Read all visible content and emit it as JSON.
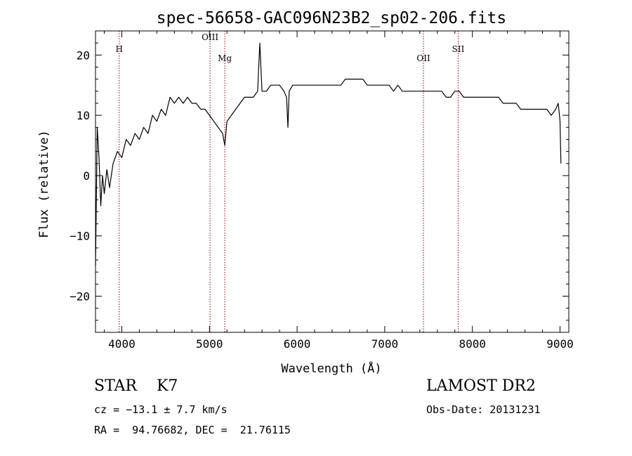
{
  "chart_data": {
    "type": "line",
    "title": "spec-56658-GAC096N23B2_sp02-206.fits",
    "xlabel": "Wavelength (Å)",
    "ylabel": "Flux (relative)",
    "xlim": [
      3700,
      9100
    ],
    "ylim": [
      -26,
      24
    ],
    "xticks": [
      4000,
      5000,
      6000,
      7000,
      8000,
      9000
    ],
    "yticks": [
      -20,
      -10,
      0,
      10,
      20
    ],
    "grid": false,
    "series": [
      {
        "color": "#000000",
        "x": [
          3700,
          3720,
          3740,
          3760,
          3780,
          3800,
          3830,
          3860,
          3900,
          3950,
          4000,
          4050,
          4100,
          4150,
          4200,
          4250,
          4300,
          4350,
          4400,
          4450,
          4500,
          4550,
          4600,
          4650,
          4700,
          4750,
          4800,
          4850,
          4900,
          4950,
          5000,
          5050,
          5100,
          5150,
          5175,
          5200,
          5250,
          5300,
          5350,
          5400,
          5450,
          5500,
          5550,
          5575,
          5600,
          5650,
          5700,
          5750,
          5800,
          5850,
          5880,
          5895,
          5910,
          5950,
          6000,
          6050,
          6100,
          6150,
          6200,
          6250,
          6300,
          6350,
          6400,
          6450,
          6500,
          6550,
          6600,
          6650,
          6700,
          6750,
          6800,
          6850,
          6900,
          6950,
          7000,
          7050,
          7100,
          7150,
          7200,
          7250,
          7300,
          7350,
          7400,
          7450,
          7500,
          7550,
          7600,
          7650,
          7700,
          7750,
          7800,
          7850,
          7900,
          7950,
          8000,
          8050,
          8100,
          8150,
          8200,
          8250,
          8300,
          8350,
          8400,
          8450,
          8500,
          8550,
          8600,
          8650,
          8700,
          8750,
          8800,
          8850,
          8900,
          8950,
          8980,
          9000,
          9010
        ],
        "y": [
          -15,
          8,
          3,
          -5,
          0,
          -3,
          1,
          -2,
          2,
          4,
          3,
          6,
          5,
          7,
          6,
          8,
          7,
          10,
          9,
          11,
          10,
          13,
          12,
          13,
          12,
          13,
          12,
          12,
          11,
          11,
          10,
          9,
          8,
          7,
          5,
          9,
          10,
          11,
          12,
          13,
          13,
          13,
          14,
          22,
          14,
          14,
          15,
          15,
          15,
          14,
          13,
          8,
          14,
          15,
          15,
          15,
          15,
          15,
          15,
          15,
          15,
          15,
          15,
          15,
          15,
          16,
          16,
          16,
          16,
          16,
          15,
          15,
          15,
          15,
          15,
          15,
          14,
          15,
          14,
          14,
          14,
          14,
          14,
          14,
          14,
          14,
          14,
          14,
          13,
          13,
          14,
          14,
          13,
          13,
          13,
          13,
          13,
          13,
          13,
          13,
          13,
          12,
          12,
          12,
          12,
          11,
          11,
          11,
          11,
          11,
          11,
          11,
          10,
          11,
          12,
          9,
          2
        ]
      }
    ],
    "annotations": [
      {
        "label": "H",
        "x": 3970,
        "y": 20.5
      },
      {
        "label": "OIII",
        "x": 5007,
        "y": 22.5
      },
      {
        "label": "Mg",
        "x": 5175,
        "y": 19.0
      },
      {
        "label": "OII",
        "x": 7442,
        "y": 19.0
      },
      {
        "label": "SII",
        "x": 7838,
        "y": 20.5
      }
    ]
  },
  "info": {
    "star_line": "STAR    K7",
    "cz_line": "cz = −13.1 ± 7.7 km/s",
    "radec_line": "RA =  94.76682, DEC =  21.76115",
    "survey": "LAMOST DR2",
    "obs_date": "Obs-Date: 20131231"
  }
}
